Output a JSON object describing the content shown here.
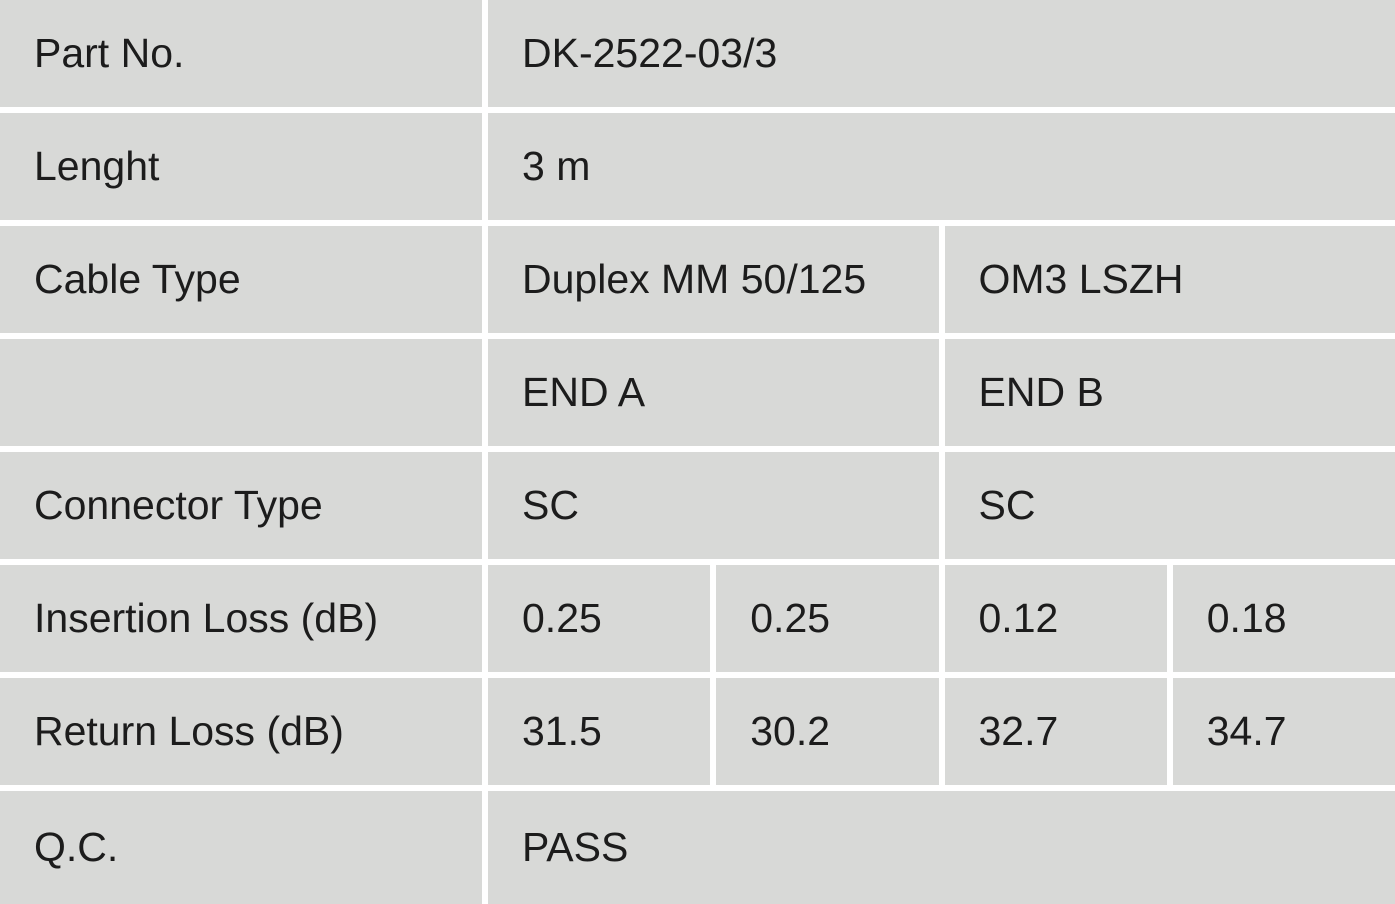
{
  "table": {
    "rows": [
      {
        "label": "Part No.",
        "cells": [
          "DK-2522-03/3"
        ]
      },
      {
        "label": "Lenght",
        "cells": [
          "3 m"
        ]
      },
      {
        "label": "Cable Type",
        "cells": [
          "Duplex MM 50/125",
          "OM3 LSZH"
        ]
      },
      {
        "cells": [
          "END A",
          "END B"
        ]
      },
      {
        "label": "Connector Type",
        "cells": [
          "SC",
          "SC"
        ]
      },
      {
        "label": "Insertion Loss (dB)",
        "cells": [
          "0.25",
          "0.25",
          "0.12",
          "0.18"
        ]
      },
      {
        "label": "Return Loss (dB)",
        "cells": [
          "31.5",
          "30.2",
          "32.7",
          "34.7"
        ]
      },
      {
        "label": "Q.C.",
        "cells": [
          "PASS"
        ]
      }
    ]
  }
}
